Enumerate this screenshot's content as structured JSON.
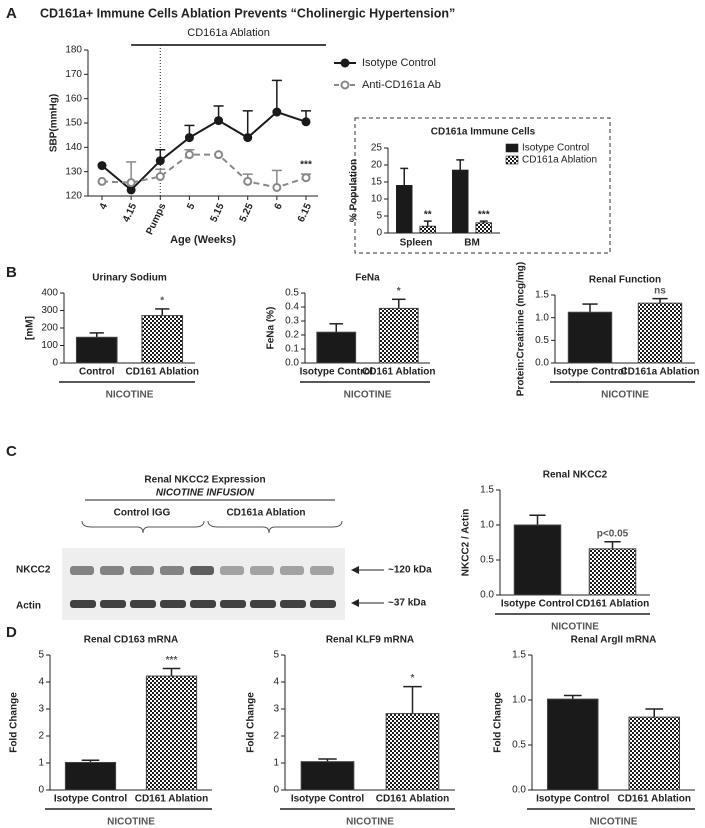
{
  "figure_title": "CD161a+ Immune Cells Ablation Prevents “Cholinergic Hypertension”",
  "panel_labels": [
    "A",
    "B",
    "C",
    "D"
  ],
  "blot": {
    "title": "Renal NKCC2 Expression",
    "subtitle": "NICOTINE INFUSION",
    "groups": [
      "Control IGG",
      "CD161a Ablation"
    ],
    "rows": [
      "NKCC2",
      "Actin"
    ],
    "sizes": [
      "~120 kDa",
      "~37 kDa"
    ]
  },
  "chart_data": [
    {
      "type": "line",
      "span_label": "CD161a Ablation",
      "categories": [
        "4",
        "4.15",
        "Pumps",
        "5",
        "5.15",
        "5.25",
        "6",
        "6.15"
      ],
      "ylabel": "SBP(mmHg)",
      "xlabel": "Age (Weeks)",
      "ylim": [
        120,
        180
      ],
      "yticks": [
        120,
        130,
        140,
        150,
        160,
        170,
        180
      ],
      "series": [
        {
          "name": "Isotype Control",
          "color": "#1a1a1a",
          "dash": false,
          "values": [
            132.5,
            122.5,
            134.5,
            144,
            151,
            144,
            154.5,
            150.5
          ],
          "errors": [
            0,
            0,
            4.5,
            5,
            6,
            11,
            13,
            4.5
          ]
        },
        {
          "name": "Anti-CD161a Ab",
          "color": "#888888",
          "dash": true,
          "values": [
            126,
            125.5,
            128,
            137,
            137,
            126,
            123.5,
            127.5
          ],
          "errors": [
            0,
            8.5,
            3,
            2,
            0,
            3,
            7,
            1.5
          ],
          "notes": [
            null,
            null,
            null,
            null,
            null,
            null,
            null,
            "***"
          ]
        }
      ]
    },
    {
      "type": "grouped-bar",
      "title": "CD161a Immune  Cells",
      "ylabel": "% Population",
      "categories": [
        "Spleen",
        "BM"
      ],
      "ylim": [
        0,
        25
      ],
      "yticks": [
        0,
        5,
        10,
        15,
        20,
        25
      ],
      "series": [
        {
          "name": "Isotype Control",
          "fill": "solid",
          "color": "#1a1a1a",
          "values": [
            14,
            18.5
          ],
          "errors": [
            5,
            3
          ]
        },
        {
          "name": "CD161a Ablation",
          "fill": "checkered",
          "color": "#1a1a1a",
          "values": [
            2,
            3
          ],
          "errors": [
            1.5,
            0.5
          ],
          "notes": [
            "**",
            "***"
          ]
        }
      ]
    },
    {
      "type": "bar",
      "title": "Urinary Sodium",
      "ylabel": "[mM]",
      "categories": [
        "Control",
        "CD161 Ablation"
      ],
      "group_label": "NICOTINE",
      "values": [
        147,
        271
      ],
      "errors": [
        25,
        38
      ],
      "notes": [
        null,
        "*"
      ],
      "fills": [
        "solid",
        "checkered"
      ],
      "color": "#1a1a1a",
      "ylim": [
        0,
        400
      ],
      "yticks": [
        0,
        100,
        200,
        300,
        400
      ]
    },
    {
      "type": "bar",
      "title": "FeNa",
      "ylabel": "FeNa (%)",
      "categories": [
        "Isotype Control",
        "CD161 Ablation"
      ],
      "group_label": "NICOTINE",
      "values": [
        0.22,
        0.39
      ],
      "errors": [
        0.06,
        0.065
      ],
      "notes": [
        null,
        "*"
      ],
      "fills": [
        "solid",
        "checkered"
      ],
      "color": "#1a1a1a",
      "ylim": [
        0,
        0.5
      ],
      "yticks": [
        {
          "value": 0,
          "label": "0.0"
        },
        0.1,
        0.2,
        0.3,
        0.4,
        0.5
      ]
    },
    {
      "type": "bar",
      "title": "Renal Function",
      "ylabel": "Protein:Creatinine (mcg/mg)",
      "categories": [
        "Isotype Control",
        "CD161a Ablation"
      ],
      "group_label": "NICOTINE",
      "values": [
        1.12,
        1.32
      ],
      "errors": [
        0.18,
        0.1
      ],
      "notes": [
        null,
        "ns"
      ],
      "fills": [
        "solid",
        "checkered"
      ],
      "color": "#1a1a1a",
      "ylim": [
        0,
        1.5
      ],
      "yticks": [
        {
          "value": 0,
          "label": "0.0"
        },
        0.5,
        {
          "value": 1,
          "label": "1.0"
        },
        1.5
      ]
    },
    {
      "type": "bar",
      "title": "Renal  NKCC2",
      "ylabel": "NKCC2 / Actin",
      "categories": [
        "Isotype Control",
        "CD161 Ablation"
      ],
      "group_label": "NICOTINE",
      "values": [
        1.0,
        0.66
      ],
      "errors": [
        0.14,
        0.1
      ],
      "notes": [
        null,
        "p<0.05"
      ],
      "fills": [
        "solid",
        "checkered"
      ],
      "color": "#1a1a1a",
      "ylim": [
        0,
        1.5
      ],
      "yticks": [
        {
          "value": 0,
          "label": "0.0"
        },
        0.5,
        {
          "value": 1,
          "label": "1.0"
        },
        1.5
      ]
    },
    {
      "type": "bar",
      "title": "Renal CD163 mRNA",
      "ylabel": "Fold Change",
      "categories": [
        "Isotype Control",
        "CD161 Ablation"
      ],
      "group_label": "NICOTINE",
      "values": [
        1.02,
        4.22
      ],
      "errors": [
        0.08,
        0.28
      ],
      "notes": [
        null,
        "***"
      ],
      "fills": [
        "solid",
        "checkered"
      ],
      "color": "#1a1a1a",
      "ylim": [
        0,
        5
      ],
      "yticks": [
        0,
        1,
        2,
        3,
        4,
        5
      ]
    },
    {
      "type": "bar",
      "title": "Renal KLF9 mRNA",
      "ylabel": "Fold Change",
      "categories": [
        "Isotype Control",
        "CD161 Ablation"
      ],
      "group_label": "NICOTINE",
      "values": [
        1.05,
        2.83
      ],
      "errors": [
        0.1,
        1.0
      ],
      "notes": [
        null,
        "*"
      ],
      "fills": [
        "solid",
        "checkered"
      ],
      "color": "#1a1a1a",
      "ylim": [
        0,
        5
      ],
      "yticks": [
        0,
        1,
        2,
        3,
        4,
        5
      ]
    },
    {
      "type": "bar",
      "title": "Renal ArgII mRNA",
      "ylabel": "Fold Change",
      "categories": [
        "Isotype Control",
        "CD161 Ablation"
      ],
      "group_label": "NICOTINE",
      "values": [
        1.01,
        0.81
      ],
      "errors": [
        0.04,
        0.09
      ],
      "notes": [
        null,
        null
      ],
      "fills": [
        "solid",
        "checkered"
      ],
      "color": "#1a1a1a",
      "ylim": [
        0,
        1.5
      ],
      "yticks": [
        {
          "value": 0,
          "label": "0.0"
        },
        0.5,
        {
          "value": 1,
          "label": "1.0"
        },
        1.5
      ]
    }
  ]
}
